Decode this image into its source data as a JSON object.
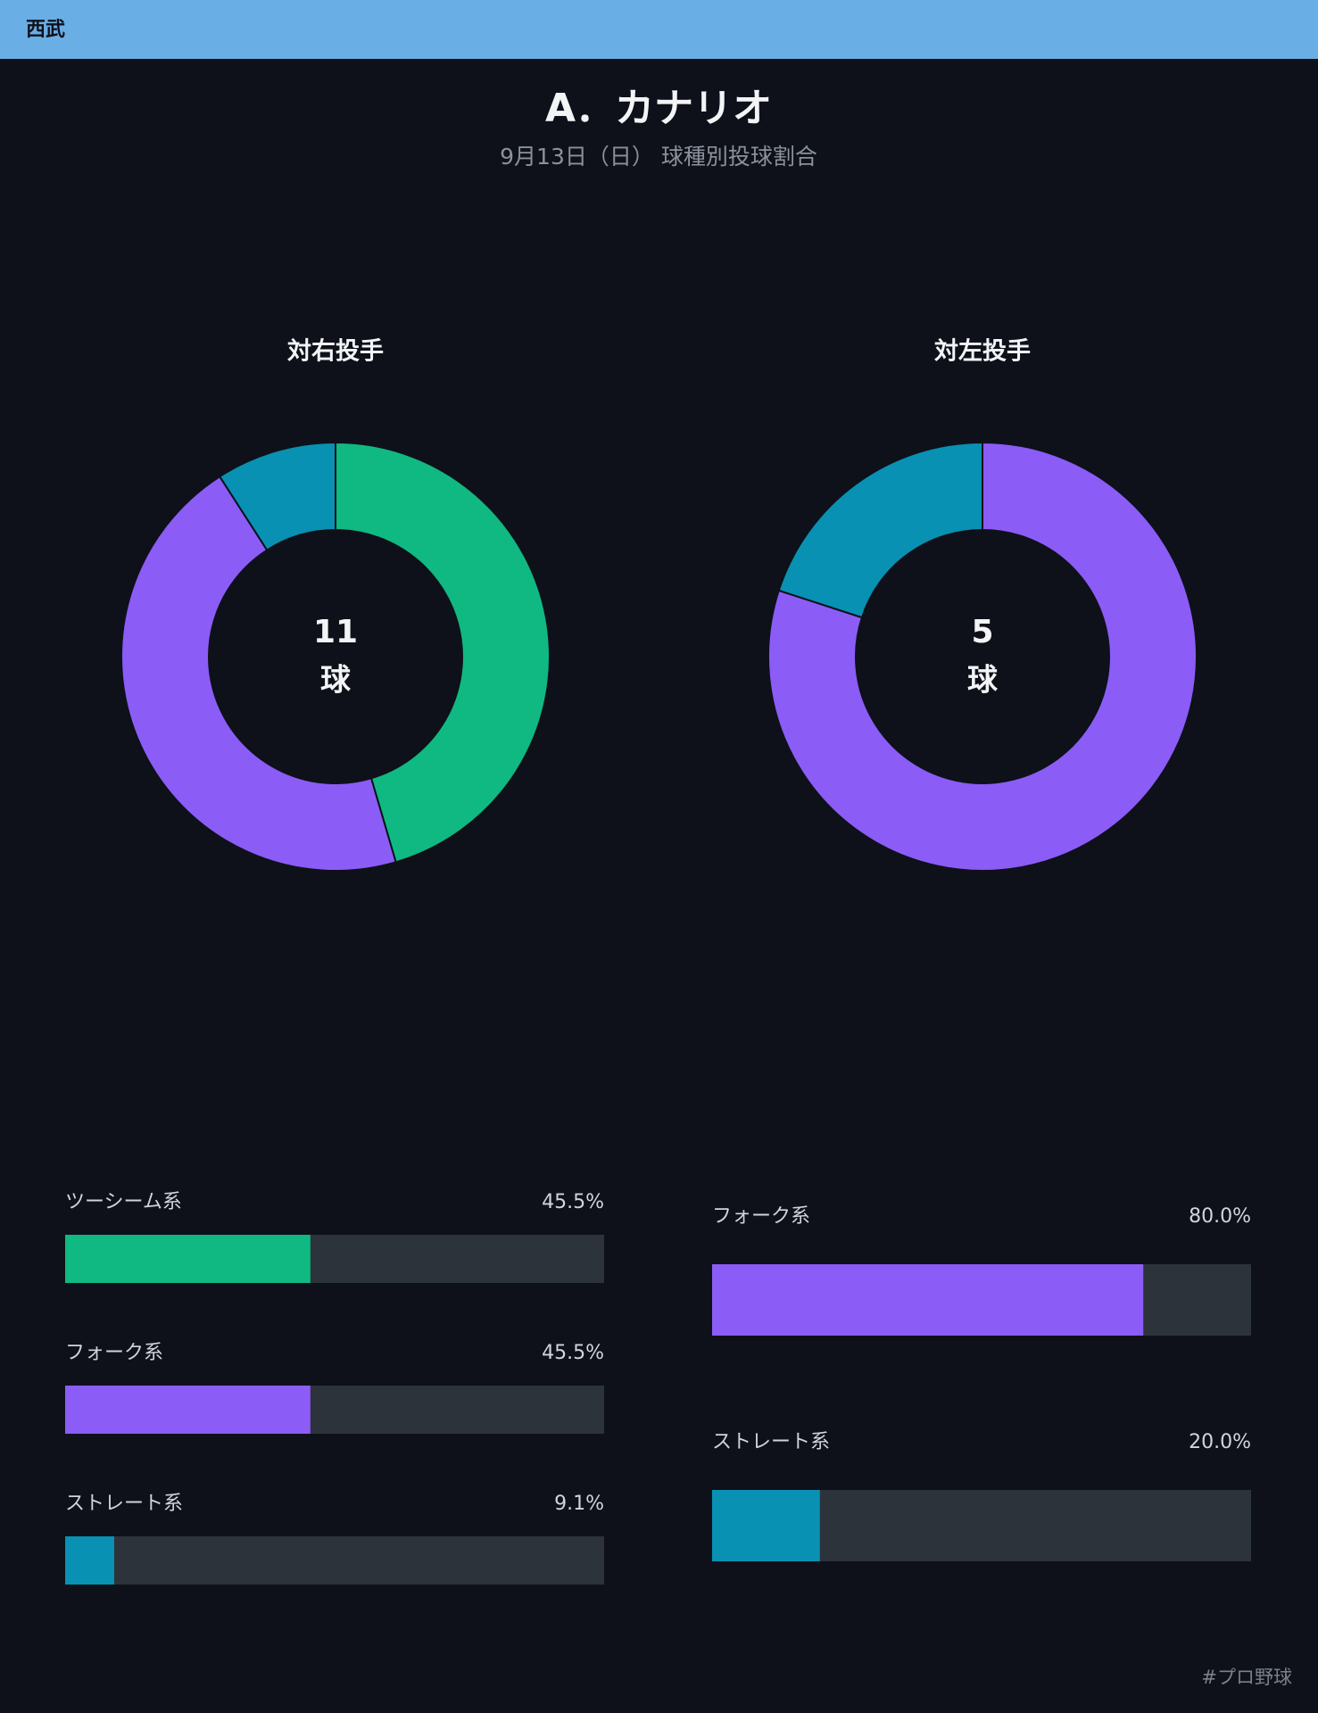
{
  "header": {
    "team": "西武"
  },
  "title": "A．カナリオ",
  "subtitle": "9月13日（日） 球種別投球割合",
  "chart_data": [
    {
      "type": "donut",
      "title": "対右投手",
      "center_value": 11,
      "center_unit": "球",
      "categories": [
        "ツーシーム系",
        "フォーク系",
        "ストレート系"
      ],
      "values": [
        45.5,
        45.5,
        9.1
      ],
      "value_labels": [
        "45.5%",
        "45.5%",
        "9.1%"
      ],
      "colors": [
        "#10b981",
        "#8b5cf6",
        "#0891b2"
      ],
      "xlim": [
        0,
        100
      ]
    },
    {
      "type": "donut",
      "title": "対左投手",
      "center_value": 5,
      "center_unit": "球",
      "categories": [
        "フォーク系",
        "ストレート系"
      ],
      "values": [
        80.0,
        20.0
      ],
      "value_labels": [
        "80.0%",
        "20.0%"
      ],
      "colors": [
        "#8b5cf6",
        "#0891b2"
      ],
      "xlim": [
        0,
        100
      ]
    }
  ],
  "footer": "#プロ野球"
}
